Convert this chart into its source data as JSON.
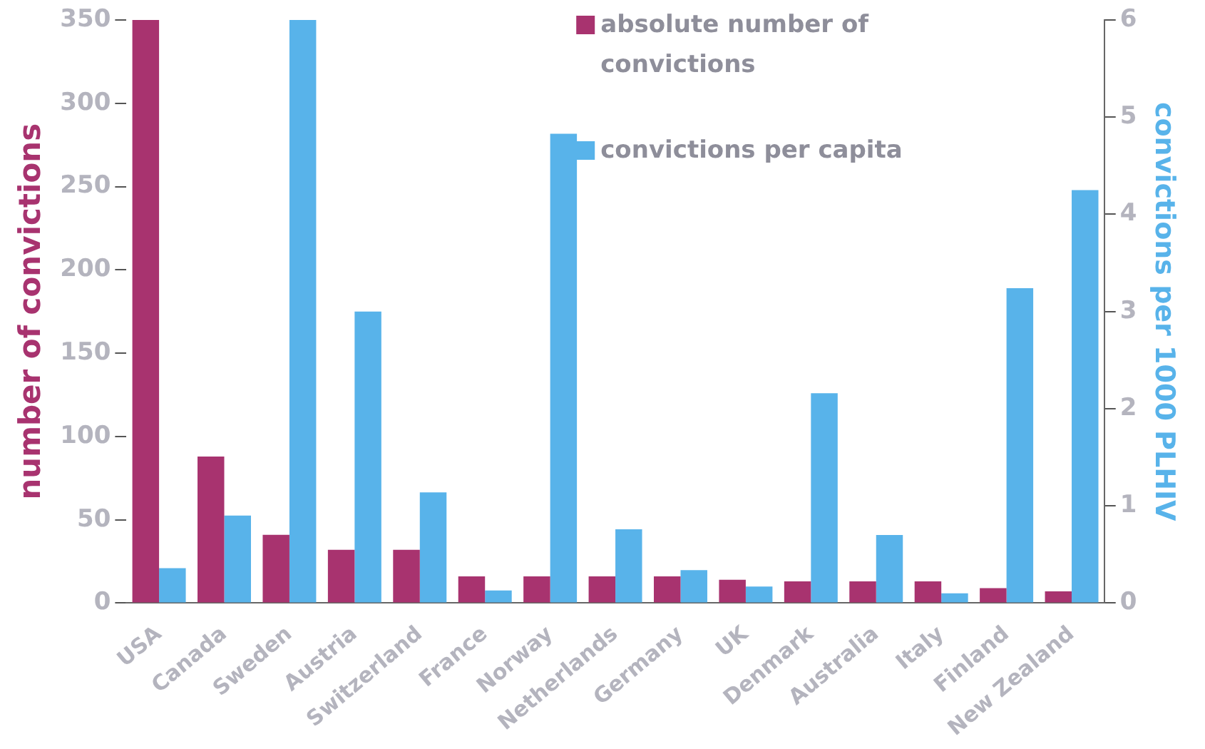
{
  "chart_data": {
    "type": "bar",
    "ylabel": "number of convictions",
    "y2label": "convictions per 1000 PLHIV",
    "categories": [
      "USA",
      "Canada",
      "Sweden",
      "Austria",
      "Switzerland",
      "France",
      "Norway",
      "Netherlands",
      "Germany",
      "UK",
      "Denmark",
      "Australia",
      "Italy",
      "Finland",
      "New Zealand"
    ],
    "series": [
      {
        "name": "absolute number of convictions",
        "color": "#a8336f",
        "values": [
          350,
          88,
          41,
          32,
          32,
          16,
          16,
          16,
          16,
          14,
          13,
          13,
          13,
          9,
          7
        ]
      },
      {
        "name": "convictions per capita",
        "color": "#58b3ea",
        "axis": "y2",
        "values": [
          0.36,
          0.9,
          6.0,
          3.0,
          1.14,
          0.13,
          4.83,
          0.76,
          0.34,
          0.17,
          2.16,
          0.7,
          0.1,
          3.24,
          4.25
        ]
      }
    ],
    "ylim": [
      0,
      350
    ],
    "yticks": [
      0,
      50,
      100,
      150,
      200,
      250,
      300,
      350
    ],
    "y2lim": [
      0,
      6
    ],
    "y2ticks": [
      0,
      1,
      2,
      3,
      4,
      5,
      6
    ],
    "legend": "top",
    "grid": false
  }
}
